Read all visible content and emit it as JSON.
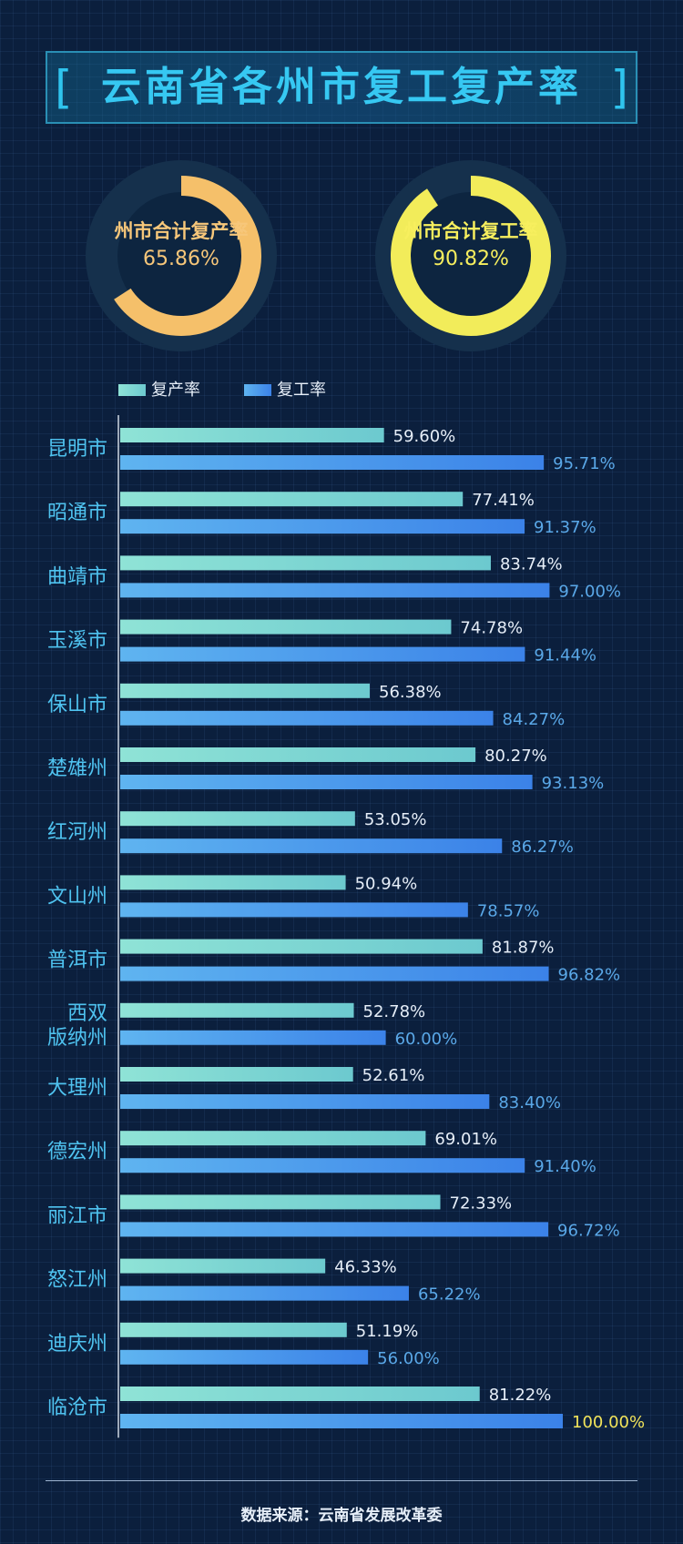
{
  "title": "云南省各州市复工复产率",
  "summary": [
    {
      "label": "州市合计复产率",
      "value": "65.86%",
      "percent": 65.86,
      "color": "#f5c06a",
      "track": "#16324f",
      "text_color": "#f7c77a"
    },
    {
      "label": "州市合计复工率",
      "value": "90.82%",
      "percent": 90.82,
      "color": "#f2ec5a",
      "track": "#16324f",
      "text_color": "#f7ef5e"
    }
  ],
  "legend": {
    "production": "复产率",
    "work": "复工率"
  },
  "colors": {
    "production_start": "#8fe3d6",
    "production_end": "#6cc9cf",
    "work_start": "#5fb4f0",
    "work_end": "#3b82e8",
    "production_label": "#e6eef8",
    "work_label": "#5aa8e8",
    "highlight_label": "#f2e45a",
    "category_label": "#4fc3f0",
    "axis": "#cfd8e3"
  },
  "chart_data": {
    "type": "bar",
    "orientation": "horizontal",
    "categories": [
      "昆明市",
      "昭通市",
      "曲靖市",
      "玉溪市",
      "保山市",
      "楚雄州",
      "红河州",
      "文山州",
      "普洱市",
      "西双版纳州",
      "大理州",
      "德宏州",
      "丽江市",
      "怒江州",
      "迪庆州",
      "临沧市"
    ],
    "category_lines": [
      [
        "昆明市"
      ],
      [
        "昭通市"
      ],
      [
        "曲靖市"
      ],
      [
        "玉溪市"
      ],
      [
        "保山市"
      ],
      [
        "楚雄州"
      ],
      [
        "红河州"
      ],
      [
        "文山州"
      ],
      [
        "普洱市"
      ],
      [
        "西双",
        "版纳州"
      ],
      [
        "大理州"
      ],
      [
        "德宏州"
      ],
      [
        "丽江市"
      ],
      [
        "怒江州"
      ],
      [
        "迪庆州"
      ],
      [
        "临沧市"
      ]
    ],
    "series": [
      {
        "name": "复产率",
        "values": [
          59.6,
          77.41,
          83.74,
          74.78,
          56.38,
          80.27,
          53.05,
          50.94,
          81.87,
          52.78,
          52.61,
          69.01,
          72.33,
          46.33,
          51.19,
          81.22
        ],
        "labels": [
          "59.60%",
          "77.41%",
          "83.74%",
          "74.78%",
          "56.38%",
          "80.27%",
          "53.05%",
          "50.94%",
          "81.87%",
          "52.78%",
          "52.61%",
          "69.01%",
          "72.33%",
          "46.33%",
          "51.19%",
          "81.22%"
        ]
      },
      {
        "name": "复工率",
        "values": [
          95.71,
          91.37,
          97.0,
          91.44,
          84.27,
          93.13,
          86.27,
          78.57,
          96.82,
          60.0,
          83.4,
          91.4,
          96.72,
          65.22,
          56.0,
          100.0
        ],
        "labels": [
          "95.71%",
          "91.37%",
          "97.00%",
          "91.44%",
          "84.27%",
          "93.13%",
          "86.27%",
          "78.57%",
          "96.82%",
          "60.00%",
          "83.40%",
          "91.40%",
          "96.72%",
          "65.22%",
          "56.00%",
          "100.00%"
        ]
      }
    ],
    "xlim": [
      0,
      100
    ],
    "legend_position": "top-left",
    "grid": false
  },
  "footer": "数据来源：云南省发展改革委"
}
